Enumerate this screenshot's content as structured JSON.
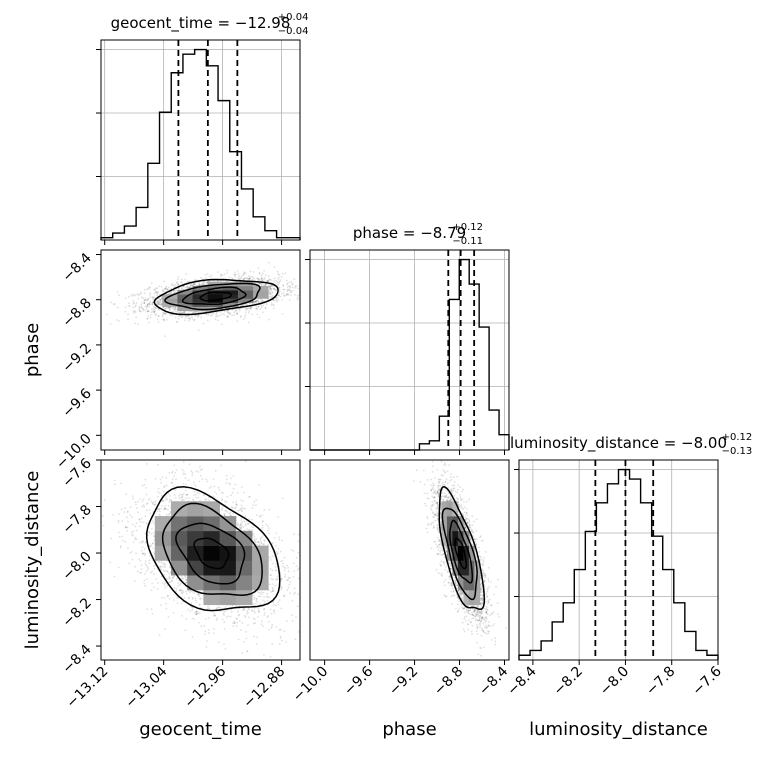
{
  "chart_data": {
    "type": "corner",
    "parameters": [
      {
        "name": "geocent_time",
        "axis_label": "geocent_time",
        "title_main": "geocent_time = −12.98",
        "title_sup": "+0.04",
        "title_sub": "−0.04",
        "median": -12.98,
        "q_lower": -13.02,
        "q_upper": -12.94,
        "range": [
          -13.125,
          -12.855
        ],
        "ticks": [
          -13.12,
          -13.04,
          -12.96,
          -12.88
        ],
        "tick_labels": [
          "−13.12",
          "−13.04",
          "−12.96",
          "−12.88"
        ],
        "hist_counts": [
          1,
          3,
          6,
          14,
          33,
          55,
          72,
          80,
          82,
          75,
          60,
          38,
          22,
          10,
          4,
          1,
          1
        ]
      },
      {
        "name": "phase",
        "axis_label": "phase",
        "title_main": "phase = −8.79",
        "title_sup": "+0.12",
        "title_sub": "−0.11",
        "median": -8.79,
        "q_lower": -8.9,
        "q_upper": -8.67,
        "range": [
          -10.13,
          -8.36
        ],
        "ticks": [
          -10.0,
          -9.6,
          -9.2,
          -8.8,
          -8.4
        ],
        "tick_labels": [
          "−10.0",
          "−9.6",
          "−9.2",
          "−8.8",
          "−8.4"
        ],
        "hist_counts": [
          0,
          0,
          0,
          0,
          0,
          0,
          0,
          0,
          0,
          0,
          0,
          2,
          3,
          11,
          49,
          62,
          54,
          40,
          13,
          5
        ]
      },
      {
        "name": "luminosity_distance",
        "axis_label": "luminosity_distance",
        "title_main": "luminosity_distance = −8.00",
        "title_sup": "+0.12",
        "title_sub": "−0.13",
        "median": -8.0,
        "q_lower": -8.13,
        "q_upper": -7.88,
        "range": [
          -8.46,
          -7.6
        ],
        "ticks": [
          -8.4,
          -8.2,
          -8.0,
          -7.8,
          -7.6
        ],
        "tick_labels": [
          "−8.4",
          "−8.2",
          "−8.0",
          "−7.8",
          "−7.6"
        ],
        "hist_counts": [
          1,
          2,
          4,
          8,
          12,
          19,
          27,
          33,
          37,
          40,
          38,
          33,
          26,
          19,
          12,
          6,
          2,
          1
        ]
      }
    ],
    "pairs": [
      {
        "x": "geocent_time",
        "y": "phase",
        "center": [
          -12.97,
          -8.77
        ],
        "std": [
          0.042,
          0.075
        ],
        "corr": 0.35
      },
      {
        "x": "geocent_time",
        "y": "luminosity_distance",
        "center": [
          -12.975,
          -8.0
        ],
        "std": [
          0.045,
          0.13
        ],
        "corr": -0.35
      },
      {
        "x": "phase",
        "y": "luminosity_distance",
        "center": [
          -8.79,
          -8.0
        ],
        "std": [
          0.1,
          0.13
        ],
        "corr": -0.7
      }
    ],
    "contour_levels_sigma": [
      0.5,
      1.0,
      1.5,
      2.0
    ],
    "grid": true,
    "quantile_lines": "dashed"
  }
}
